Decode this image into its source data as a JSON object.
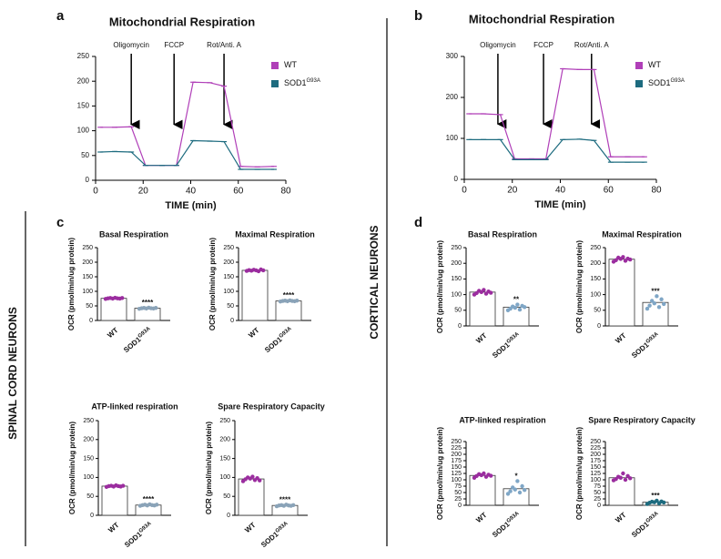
{
  "panel_labels": [
    "a",
    "b",
    "c",
    "d"
  ],
  "side_labels": [
    "SPINAL CORD NEURONS",
    "CORTICAL NEURONS"
  ],
  "chart_data": [
    {
      "type": "line",
      "title": "Mitochondrial Respiration",
      "x_label": "TIME (min)",
      "x": [
        2,
        8,
        15,
        21,
        28,
        34,
        41,
        48,
        54,
        61,
        68,
        75
      ],
      "xlim": [
        0,
        80
      ],
      "xticks": [
        0,
        20,
        40,
        60,
        80
      ],
      "ylim": [
        0,
        250
      ],
      "yticks": [
        0,
        50,
        100,
        150,
        200,
        250
      ],
      "annotations": [
        {
          "text": "Oligomycin",
          "x": 15
        },
        {
          "text": "FCCP",
          "x": 33
        },
        {
          "text": "Rot/Anti. A",
          "x": 54
        }
      ],
      "series": [
        {
          "name": "WT",
          "color": "#b03fb8",
          "values": [
            107,
            107,
            108,
            30,
            30,
            30,
            198,
            197,
            190,
            28,
            27,
            28
          ]
        },
        {
          "name": "SOD1",
          "sup": "G93A",
          "color": "#1d6b7f",
          "values": [
            57,
            58,
            57,
            30,
            30,
            30,
            80,
            79,
            78,
            22,
            22,
            22
          ]
        }
      ]
    },
    {
      "type": "line",
      "title": "Mitochondrial Respiration",
      "x_label": "TIME (min)",
      "x": [
        2,
        8,
        15,
        21,
        28,
        34,
        41,
        48,
        54,
        61,
        68,
        75
      ],
      "xlim": [
        0,
        80
      ],
      "xticks": [
        0,
        20,
        40,
        60,
        80
      ],
      "ylim": [
        0,
        300
      ],
      "yticks": [
        0,
        100,
        200,
        300
      ],
      "annotations": [
        {
          "text": "Oligomycin",
          "x": 14
        },
        {
          "text": "FCCP",
          "x": 33
        },
        {
          "text": "Rot/Anti. A",
          "x": 53
        }
      ],
      "series": [
        {
          "name": "WT",
          "color": "#b03fb8",
          "values": [
            160,
            160,
            158,
            50,
            50,
            50,
            270,
            268,
            268,
            55,
            55,
            55
          ]
        },
        {
          "name": "SOD1",
          "sup": "G93A",
          "color": "#1d6b7f",
          "values": [
            97,
            97,
            97,
            48,
            48,
            48,
            97,
            98,
            95,
            42,
            42,
            42
          ]
        }
      ]
    },
    {
      "type": "bar",
      "title": "Basal Respiration",
      "y_label": "OCR (pmol/min/ug protein)",
      "categories": [
        "WT",
        "SOD1"
      ],
      "category_sup": "G93A",
      "ylim": [
        0,
        250
      ],
      "yticks": [
        0,
        50,
        100,
        150,
        200,
        250
      ],
      "values": [
        76,
        42
      ],
      "significance": "****",
      "point_colors": [
        "#9b2d9f",
        "#8aa3b8"
      ],
      "points": [
        [
          74,
          76,
          77,
          75,
          78,
          76,
          75,
          77
        ],
        [
          40,
          42,
          43,
          41,
          44,
          42,
          41,
          43
        ]
      ]
    },
    {
      "type": "bar",
      "title": "Maximal Respiration",
      "y_label": "OCR (pmol/min/ug protein)",
      "categories": [
        "WT",
        "SOD1"
      ],
      "category_sup": "G93A",
      "ylim": [
        0,
        250
      ],
      "yticks": [
        0,
        50,
        100,
        150,
        200,
        250
      ],
      "values": [
        172,
        67
      ],
      "significance": "****",
      "point_colors": [
        "#9b2d9f",
        "#8aa3b8"
      ],
      "points": [
        [
          170,
          173,
          171,
          174,
          172,
          169,
          175,
          172
        ],
        [
          65,
          67,
          68,
          66,
          69,
          67,
          66,
          68
        ]
      ]
    },
    {
      "type": "bar",
      "title": "ATP-linked respiration",
      "y_label": "OCR (pmol/min/ug protein)",
      "categories": [
        "WT",
        "SOD1"
      ],
      "category_sup": "G93A",
      "ylim": [
        0,
        250
      ],
      "yticks": [
        0,
        50,
        100,
        150,
        200,
        250
      ],
      "values": [
        77,
        27
      ],
      "significance": "****",
      "point_colors": [
        "#9b2d9f",
        "#8aa3b8"
      ],
      "points": [
        [
          75,
          77,
          78,
          76,
          79,
          77,
          76,
          78
        ],
        [
          25,
          27,
          28,
          26,
          29,
          27,
          26,
          28
        ]
      ]
    },
    {
      "type": "bar",
      "title": "Spare Respiratory Capacity",
      "y_label": "OCR (pmol/min/ug protein)",
      "categories": [
        "WT",
        "SOD1"
      ],
      "category_sup": "G93A",
      "ylim": [
        0,
        250
      ],
      "yticks": [
        0,
        50,
        100,
        150,
        200,
        250
      ],
      "values": [
        96,
        26
      ],
      "significance": "****",
      "point_colors": [
        "#9b2d9f",
        "#8aa3b8"
      ],
      "points": [
        [
          90,
          95,
          100,
          97,
          102,
          93,
          98,
          92
        ],
        [
          24,
          26,
          27,
          25,
          28,
          26,
          25,
          27
        ]
      ]
    },
    {
      "type": "bar",
      "title": "Basal Respiration",
      "y_label": "OCR (pmol/min/ug protein)",
      "categories": [
        "WT",
        "SOD1"
      ],
      "category_sup": "G93A",
      "ylim": [
        0,
        250
      ],
      "yticks": [
        0,
        50,
        100,
        150,
        200,
        250
      ],
      "values": [
        108,
        60
      ],
      "significance": "**",
      "point_colors": [
        "#9b2d9f",
        "#7fa6c6"
      ],
      "points": [
        [
          100,
          105,
          112,
          108,
          115,
          103,
          110,
          106
        ],
        [
          50,
          55,
          62,
          58,
          68,
          52,
          64,
          60
        ]
      ]
    },
    {
      "type": "bar",
      "title": "Maximal Respiration",
      "y_label": "OCR (pmol/min/ug protein)",
      "categories": [
        "WT",
        "SOD1"
      ],
      "category_sup": "G93A",
      "ylim": [
        0,
        250
      ],
      "yticks": [
        0,
        50,
        100,
        150,
        200,
        250
      ],
      "values": [
        213,
        75
      ],
      "significance": "***",
      "point_colors": [
        "#9b2d9f",
        "#7fa6c6"
      ],
      "points": [
        [
          205,
          210,
          218,
          214,
          220,
          208,
          215,
          212
        ],
        [
          55,
          65,
          80,
          72,
          95,
          60,
          85,
          70
        ]
      ]
    },
    {
      "type": "bar",
      "title": "ATP-linked respiration",
      "y_label": "OCR (pmol/min/ug protein)",
      "categories": [
        "WT",
        "SOD1"
      ],
      "category_sup": "G93A",
      "ylim": [
        0,
        250
      ],
      "yticks": [
        0,
        25,
        50,
        75,
        100,
        125,
        150,
        175,
        200,
        225,
        250
      ],
      "values": [
        117,
        65
      ],
      "significance": "*",
      "point_colors": [
        "#9b2d9f",
        "#7fa6c6"
      ],
      "points": [
        [
          108,
          115,
          122,
          118,
          125,
          112,
          120,
          116
        ],
        [
          45,
          55,
          70,
          62,
          95,
          50,
          75,
          60
        ]
      ]
    },
    {
      "type": "bar",
      "title": "Spare Respiratory Capacity",
      "y_label": "OCR (pmol/min/ug protein)",
      "categories": [
        "WT",
        "SOD1"
      ],
      "category_sup": "G93A",
      "ylim": [
        0,
        250
      ],
      "yticks": [
        0,
        25,
        50,
        75,
        100,
        125,
        150,
        175,
        200,
        225,
        250
      ],
      "values": [
        108,
        12
      ],
      "significance": "***",
      "point_colors": [
        "#9b2d9f",
        "#1d6b7f"
      ],
      "points": [
        [
          98,
          103,
          112,
          108,
          125,
          100,
          115,
          106
        ],
        [
          5,
          10,
          14,
          12,
          18,
          8,
          15,
          11
        ]
      ]
    }
  ]
}
